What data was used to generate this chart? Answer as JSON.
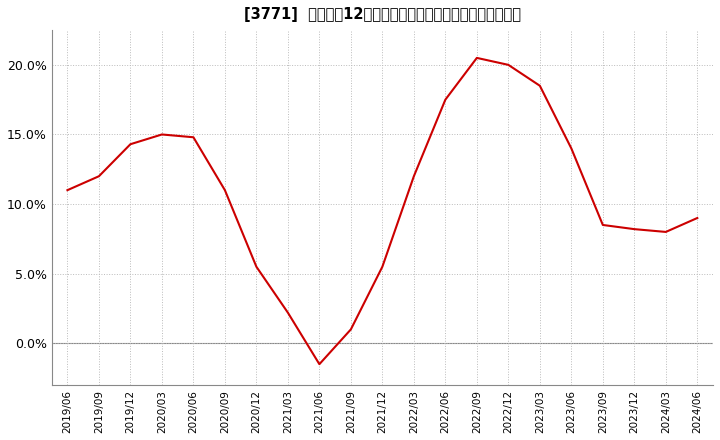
{
  "title": "[3771]  売上高の12か月移動合計の対前年同期増減率の推移",
  "title_fontsize": 10.5,
  "line_color": "#cc0000",
  "background_color": "#ffffff",
  "grid_color": "#bbbbbb",
  "ylim": [
    -0.03,
    0.225
  ],
  "yticks": [
    0.0,
    0.05,
    0.1,
    0.15,
    0.2
  ],
  "ytick_labels": [
    "0.0%",
    "5.0%",
    "10.0%",
    "15.0%",
    "20.0%"
  ],
  "x_labels": [
    "2019/06",
    "2019/09",
    "2019/12",
    "2020/03",
    "2020/06",
    "2020/09",
    "2020/12",
    "2021/03",
    "2021/06",
    "2021/09",
    "2021/12",
    "2022/03",
    "2022/06",
    "2022/09",
    "2022/12",
    "2023/03",
    "2023/06",
    "2023/09",
    "2023/12",
    "2024/03",
    "2024/06"
  ],
  "x_values": [
    0,
    1,
    2,
    3,
    4,
    5,
    6,
    7,
    8,
    9,
    10,
    11,
    12,
    13,
    14,
    15,
    16,
    17,
    18,
    19,
    20
  ],
  "y_values": [
    0.11,
    0.12,
    0.143,
    0.15,
    0.148,
    0.11,
    0.055,
    0.022,
    -0.015,
    0.01,
    0.055,
    0.12,
    0.175,
    0.205,
    0.2,
    0.185,
    0.14,
    0.085,
    0.082,
    0.08,
    0.09
  ],
  "line_width": 1.5
}
